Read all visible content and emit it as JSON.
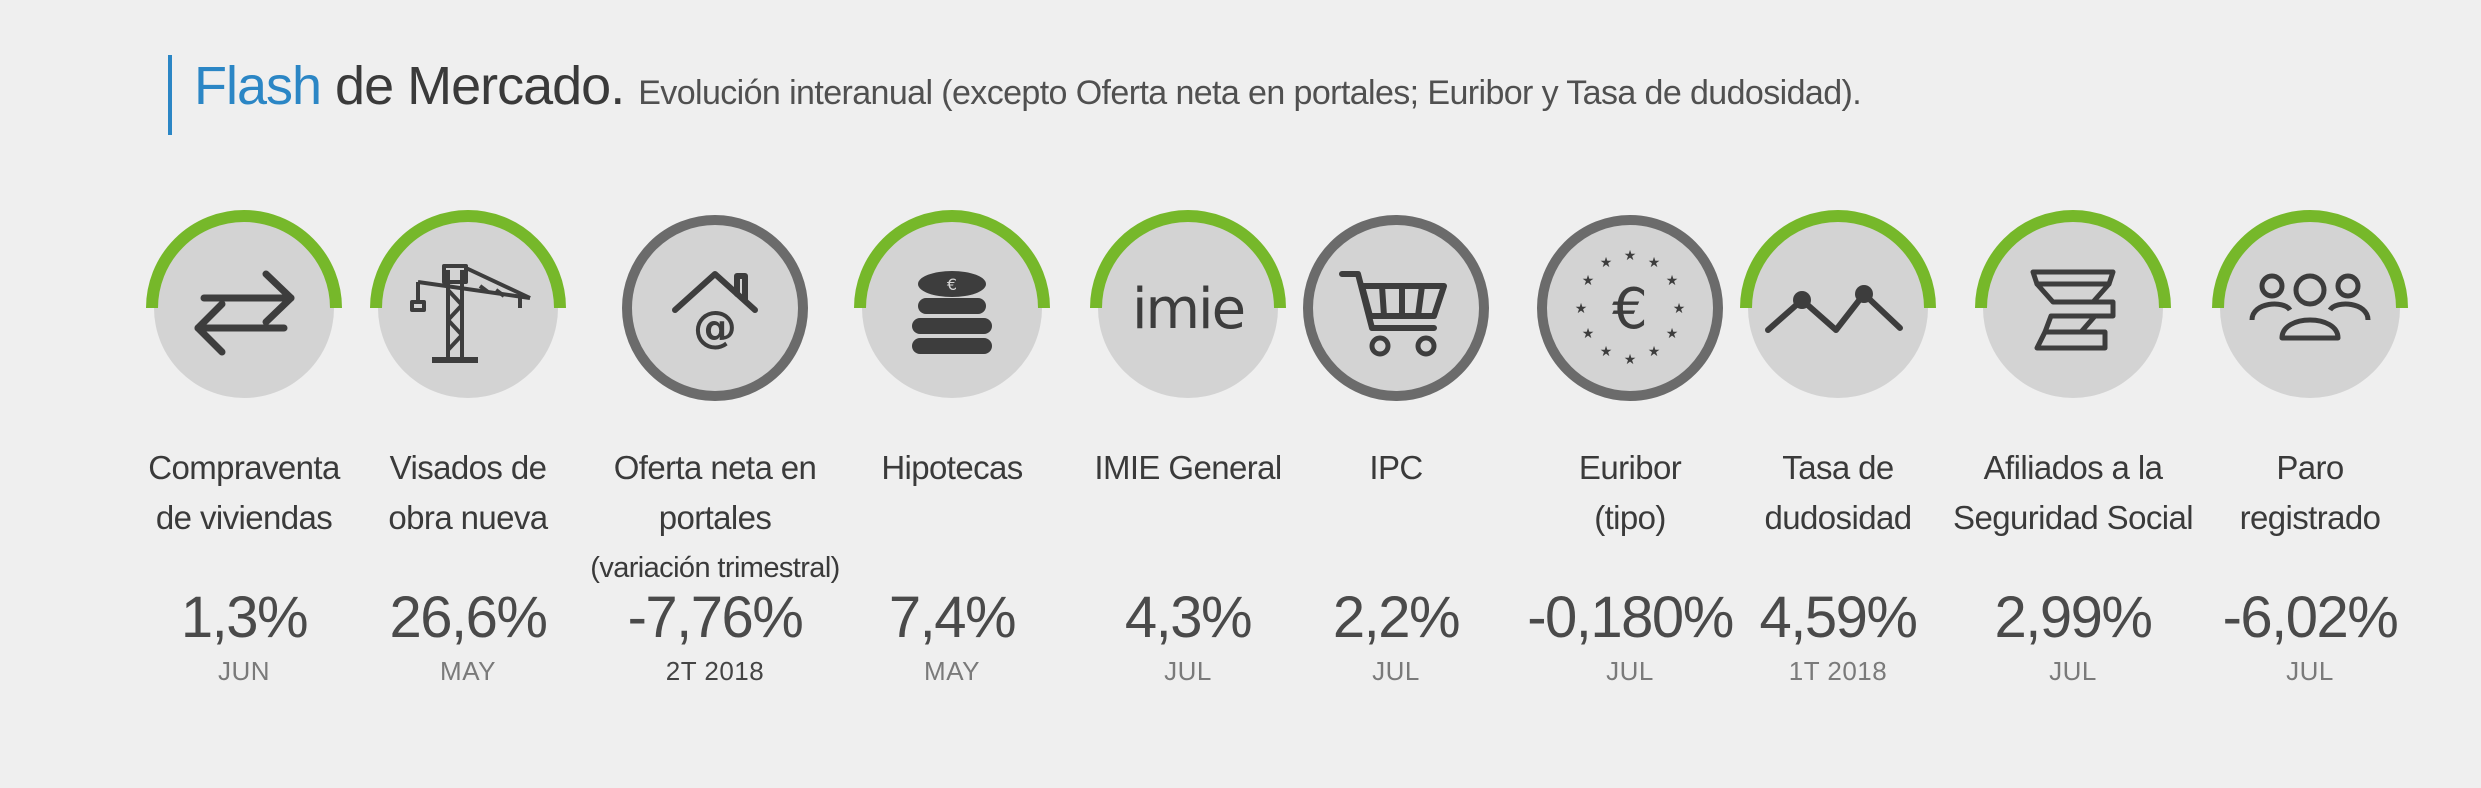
{
  "header": {
    "title_accent": "Flash",
    "title_rest": "de Mercado.",
    "subtitle": "Evolución interanual (excepto Oferta neta en portales; Euribor y Tasa de dudosidad)."
  },
  "colors": {
    "accent_blue": "#2b86c5",
    "positive_arc": "#76b82a",
    "neutral_ring": "#6b6b6b",
    "circle_fill": "#d3d3d3",
    "background": "#efefef"
  },
  "indicators": [
    {
      "icon": "exchange-arrows-icon",
      "label1": "Compraventa",
      "label2": "de viviendas",
      "value": "1,3%",
      "period": "JUN",
      "trend": "positive"
    },
    {
      "icon": "crane-icon",
      "label1": "Visados de",
      "label2": "obra nueva",
      "value": "26,6%",
      "period": "MAY",
      "trend": "positive"
    },
    {
      "icon": "house-at-icon",
      "label1": "Oferta neta en portales",
      "label2": "(variación trimestral)",
      "value": "-7,76%",
      "period": "2T 2018",
      "trend": "neutral"
    },
    {
      "icon": "coins-euro-icon",
      "label1": "Hipotecas",
      "label2": "",
      "value": "7,4%",
      "period": "MAY",
      "trend": "positive"
    },
    {
      "icon": "imie-logo-icon",
      "label1": "IMIE General",
      "label2": "",
      "value": "4,3%",
      "period": "JUL",
      "trend": "positive"
    },
    {
      "icon": "shopping-cart-icon",
      "label1": "IPC",
      "label2": "",
      "value": "2,2%",
      "period": "JUL",
      "trend": "neutral"
    },
    {
      "icon": "euro-stars-icon",
      "label1": "Euribor",
      "label2": "(tipo)",
      "value": "-0,180%",
      "period": "JUL",
      "trend": "neutral"
    },
    {
      "icon": "trend-line-icon",
      "label1": "Tasa de",
      "label2": "dudosidad",
      "value": "4,59%",
      "period": "1T 2018",
      "trend": "positive"
    },
    {
      "icon": "social-security-icon",
      "label1": "Afiliados a la",
      "label2": "Seguridad Social",
      "value": "2,99%",
      "period": "JUL",
      "trend": "positive"
    },
    {
      "icon": "people-group-icon",
      "label1": "Paro",
      "label2": "registrado",
      "value": "-6,02%",
      "period": "JUL",
      "trend": "positive"
    }
  ],
  "imie_text": "imie"
}
